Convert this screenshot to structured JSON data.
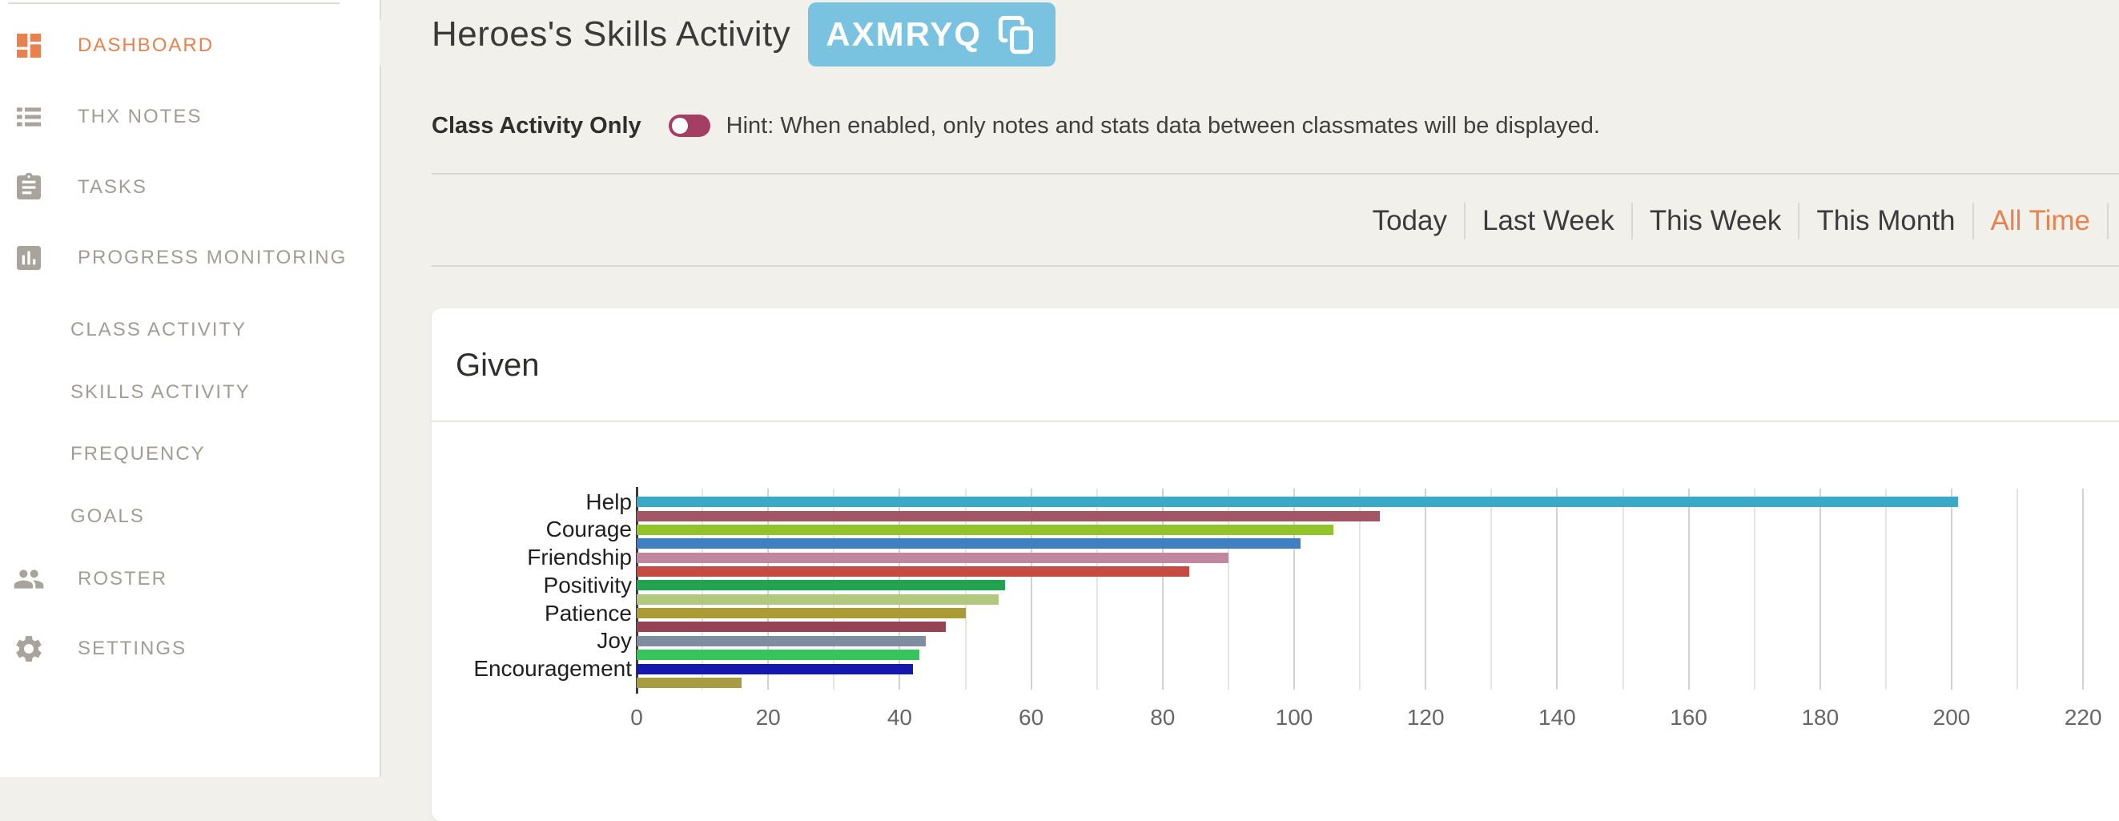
{
  "sidebar": {
    "items": [
      {
        "label": "DASHBOARD",
        "icon": "dashboard-icon",
        "active": true,
        "sub": false
      },
      {
        "label": "THX NOTES",
        "icon": "list-icon",
        "active": false,
        "sub": false
      },
      {
        "label": "TASKS",
        "icon": "clipboard-icon",
        "active": false,
        "sub": false
      },
      {
        "label": "PROGRESS MONITORING",
        "icon": "bar-chart-icon",
        "active": false,
        "sub": false
      },
      {
        "label": "CLASS ACTIVITY",
        "icon": "",
        "active": false,
        "sub": true
      },
      {
        "label": "SKILLS ACTIVITY",
        "icon": "",
        "active": false,
        "sub": true
      },
      {
        "label": "FREQUENCY",
        "icon": "",
        "active": false,
        "sub": true
      },
      {
        "label": "GOALS",
        "icon": "",
        "active": false,
        "sub": true
      },
      {
        "label": "ROSTER",
        "icon": "people-icon",
        "active": false,
        "sub": false
      },
      {
        "label": "SETTINGS",
        "icon": "gear-icon",
        "active": false,
        "sub": false
      }
    ]
  },
  "header": {
    "title": "Heroes's Skills Activity",
    "class_code": "AXMRYQ",
    "copy_icon": "copy-icon",
    "badge_color": "#79c2e0"
  },
  "toggle_row": {
    "label": "Class Activity Only",
    "enabled": true,
    "toggle_color": "#a63d62",
    "hint": "Hint: When enabled, only notes and stats data between classmates will be displayed."
  },
  "time_filters": {
    "options": [
      "Today",
      "Last Week",
      "This Week",
      "This Month",
      "All Time"
    ],
    "active": "All Time",
    "active_color": "#e8824e"
  },
  "card": {
    "title": "Given"
  },
  "chart_data": {
    "type": "bar",
    "orientation": "horizontal",
    "title": "Given",
    "categories": [
      "Help",
      "",
      "Courage",
      "",
      "Friendship",
      "",
      "Positivity",
      "",
      "Patience",
      "",
      "Joy",
      "",
      "Encouragement",
      ""
    ],
    "values": [
      201,
      113,
      106,
      101,
      90,
      84,
      56,
      55,
      50,
      47,
      44,
      43,
      42,
      16
    ],
    "bar_colors": [
      "#3aa9c7",
      "#a25564",
      "#93c32b",
      "#4080c0",
      "#c287a0",
      "#c54a42",
      "#22a350",
      "#b2c87e",
      "#ab9b33",
      "#974356",
      "#7e8da0",
      "#36c45c",
      "#1418ad",
      "#a89b42"
    ],
    "x_ticks": [
      0,
      20,
      40,
      60,
      80,
      100,
      120,
      140,
      160,
      180,
      200,
      220
    ],
    "xlim": [
      0,
      225
    ],
    "gridline_interval": 10,
    "xlabel": "",
    "ylabel": "",
    "legend": false
  },
  "colors": {
    "background": "#f2f0eb",
    "sidebar_bg": "#ffffff",
    "accent_orange": "#e8814e",
    "divider": "#d9d8d3"
  }
}
